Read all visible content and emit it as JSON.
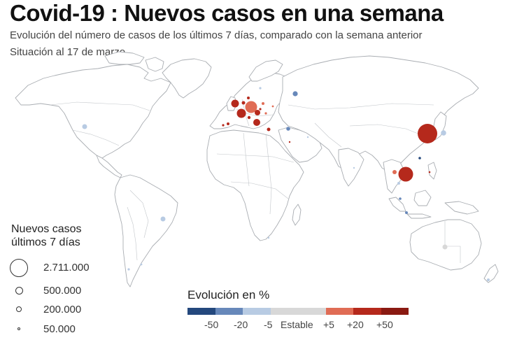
{
  "header": {
    "title": "Covid-19 : Nuevos casos en una semana",
    "subtitle": "Evolución del número de casos de los últimos 7 días, comparado con la semana anterior",
    "date_note": "Situación al 17 de marzo"
  },
  "legend_size": {
    "title_line1": "Nuevos casos",
    "title_line2": "últimos 7 días",
    "items": [
      {
        "value": 2711000,
        "label": "2.711.000"
      },
      {
        "value": 500000,
        "label": "500.000"
      },
      {
        "value": 200000,
        "label": "200.000"
      },
      {
        "value": 50000,
        "label": "50.000"
      }
    ]
  },
  "legend_change": {
    "title": "Evolución en %",
    "segments": [
      {
        "color": "#24487d"
      },
      {
        "color": "#6788ba"
      },
      {
        "color": "#b8cbe3"
      },
      {
        "color": "#d8d8d8"
      },
      {
        "color": "#d8d8d8"
      },
      {
        "color": "#e06c55"
      },
      {
        "color": "#b5291c"
      },
      {
        "color": "#8a1a12"
      }
    ],
    "ticks": [
      "-50",
      "-20",
      "-5",
      "Estable",
      "+5",
      "+20",
      "+50"
    ]
  },
  "map_style": {
    "land": "#ffffff",
    "border": "#a9adb2",
    "ocean": "#ffffff"
  },
  "colors": {
    "strong_decrease": "#24487d",
    "decrease": "#6788ba",
    "slight_decrease": "#b8cbe3",
    "stable": "#d8d8d8",
    "slight_increase": "#e06c55",
    "increase": "#b5291c",
    "strong_increase": "#8a1a12"
  }
}
